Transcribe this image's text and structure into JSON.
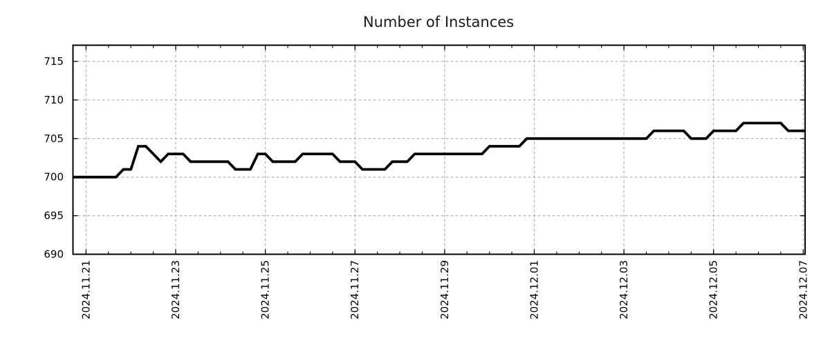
{
  "chart_data": {
    "type": "line",
    "title": "Number of Instances",
    "series_name": "instances",
    "x_start": "2024-11-20 16:00",
    "x_step_hours": 4,
    "values": [
      700,
      700,
      700,
      700,
      700,
      700,
      700,
      701,
      701,
      704,
      704,
      703,
      702,
      703,
      703,
      703,
      702,
      702,
      702,
      702,
      702,
      702,
      701,
      701,
      701,
      703,
      703,
      702,
      702,
      702,
      702,
      703,
      703,
      703,
      703,
      703,
      702,
      702,
      702,
      701,
      701,
      701,
      701,
      702,
      702,
      702,
      703,
      703,
      703,
      703,
      703,
      703,
      703,
      703,
      703,
      703,
      704,
      704,
      704,
      704,
      704,
      705,
      705,
      705,
      705,
      705,
      705,
      705,
      705,
      705,
      705,
      705,
      705,
      705,
      705,
      705,
      705,
      705,
      706,
      706,
      706,
      706,
      706,
      705,
      705,
      705,
      706,
      706,
      706,
      706,
      707,
      707,
      707,
      707,
      707,
      707,
      706,
      706,
      706
    ],
    "ylim": [
      690,
      717.1
    ],
    "yticks": [
      690,
      695,
      700,
      705,
      710,
      715
    ],
    "xlim_hours": [
      1,
      393
    ],
    "xticks": [
      {
        "t": 8,
        "label": "2024.11.21"
      },
      {
        "t": 56,
        "label": "2024.11.23"
      },
      {
        "t": 104,
        "label": "2024.11.25"
      },
      {
        "t": 152,
        "label": "2024.11.27"
      },
      {
        "t": 200,
        "label": "2024.11.29"
      },
      {
        "t": 248,
        "label": "2024.12.01"
      },
      {
        "t": 296,
        "label": "2024.12.03"
      },
      {
        "t": 344,
        "label": "2024.12.05"
      },
      {
        "t": 392,
        "label": "2024.12.07"
      }
    ],
    "minor_tick_every_hours": 12,
    "extend_line_to_right_edge": true,
    "grid": "major-dashed",
    "legend": "none",
    "line_color": "#000000",
    "grid_color": "#a6a6a6",
    "border_color": "#000000",
    "tick_color": "#000000",
    "label_color": "#000000",
    "title_color": "#1a1a1a",
    "background": "#ffffff"
  }
}
